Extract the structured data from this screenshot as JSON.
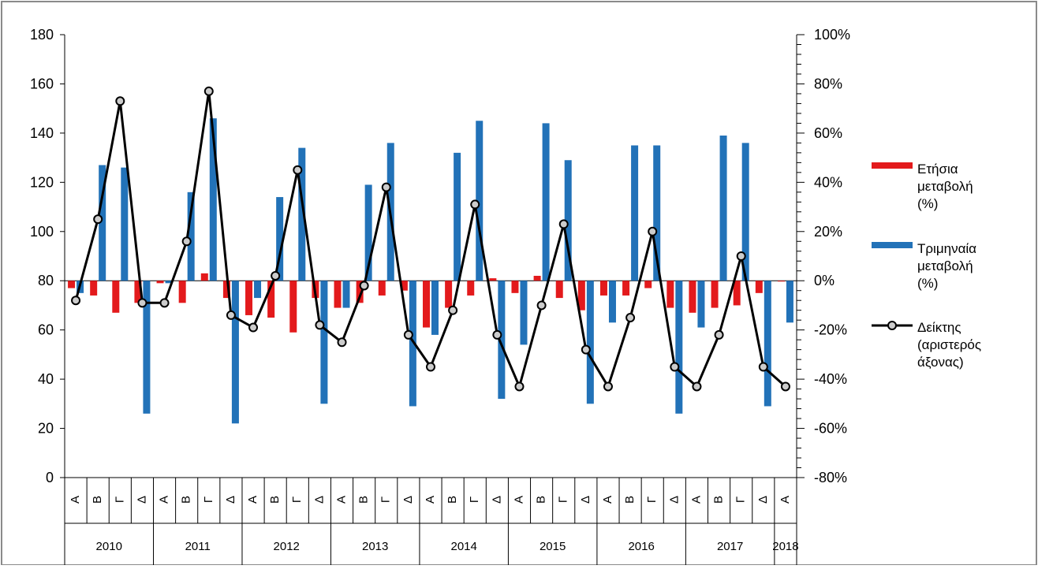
{
  "chart_data": {
    "type": "bar",
    "title": "",
    "categories": [
      "Α",
      "Β",
      "Γ",
      "Δ",
      "Α",
      "Β",
      "Γ",
      "Δ",
      "Α",
      "Β",
      "Γ",
      "Δ",
      "Α",
      "Β",
      "Γ",
      "Δ",
      "Α",
      "Β",
      "Γ",
      "Δ",
      "Α",
      "Β",
      "Γ",
      "Δ",
      "Α",
      "Β",
      "Γ",
      "Δ",
      "Α",
      "Β",
      "Γ",
      "Δ",
      "Α"
    ],
    "years": [
      "2010",
      "2011",
      "2012",
      "2013",
      "2014",
      "2015",
      "2016",
      "2017",
      "2018"
    ],
    "left_axis": {
      "ylim": [
        0,
        180
      ],
      "ticks": [
        "0",
        "20",
        "40",
        "60",
        "80",
        "100",
        "120",
        "140",
        "160",
        "180"
      ]
    },
    "right_axis": {
      "ylim": [
        -80,
        100
      ],
      "unit": "%",
      "ticks": [
        "-80%",
        "-60%",
        "-40%",
        "-20%",
        "0%",
        "20%",
        "40%",
        "60%",
        "80%",
        "100%"
      ]
    },
    "series": [
      {
        "name": "Ετήσια μεταβολή (%)",
        "kind": "bar",
        "axis": "right",
        "color": "#e31a1c",
        "values": [
          -3,
          -6,
          -13,
          -9,
          -1,
          -9,
          3,
          -7,
          -14,
          -15,
          -21,
          -7,
          -11,
          -9,
          -6,
          -4,
          -19,
          -11,
          -6,
          1,
          -5,
          2,
          -7,
          -12,
          -6,
          -6,
          -3,
          -11,
          -13,
          -11,
          -10,
          -5,
          0
        ]
      },
      {
        "name": "Τριμηναία μεταβολή (%)",
        "kind": "bar",
        "axis": "right",
        "color": "#2272b8",
        "values": [
          -5,
          47,
          46,
          -54,
          -1,
          36,
          66,
          -58,
          -7,
          34,
          54,
          -50,
          -11,
          39,
          56,
          -51,
          -22,
          52,
          65,
          -48,
          -26,
          64,
          49,
          -50,
          -17,
          55,
          55,
          -54,
          -19,
          59,
          56,
          -51,
          -17
        ]
      },
      {
        "name": "Δείκτης (αριστερός άξονας)",
        "kind": "line",
        "axis": "left",
        "color": "#000000",
        "values": [
          72,
          105,
          153,
          71,
          71,
          96,
          157,
          66,
          61,
          82,
          125,
          62,
          55,
          78,
          118,
          58,
          45,
          68,
          111,
          58,
          37,
          70,
          103,
          52,
          37,
          65,
          100,
          45,
          37,
          58,
          90,
          45,
          37
        ]
      }
    ],
    "legend_position": "right",
    "grid": false
  }
}
